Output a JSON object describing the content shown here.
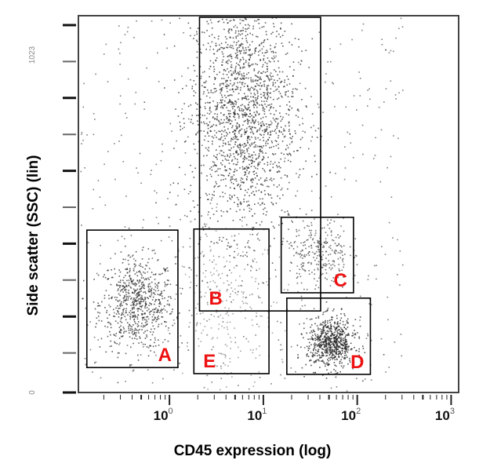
{
  "chart_data": {
    "type": "scatter",
    "title": "",
    "xlabel": "CD45 expression (log)",
    "ylabel": "Side scatter (SSC) (lin)",
    "xscale": "log",
    "xlim_log10": [
      -0.97,
      3.08
    ],
    "ylim": [
      0,
      1058
    ],
    "x_ticks": [
      {
        "base": "10",
        "exp": "0",
        "log10": 0
      },
      {
        "base": "10",
        "exp": "1",
        "log10": 1
      },
      {
        "base": "10",
        "exp": "2",
        "log10": 2
      },
      {
        "base": "10",
        "exp": "3",
        "log10": 3
      }
    ],
    "y_tick_labels": [
      {
        "label": "0",
        "value": 0
      },
      {
        "label": "1023",
        "value": 1023
      }
    ],
    "y_tick_count": 11,
    "grid": false,
    "point_color": "#333333",
    "gate_label_color": "#ee1111",
    "gates": [
      {
        "label": "A",
        "x_log10": [
          -0.88,
          0.09
        ],
        "y": [
          70,
          456
        ]
      },
      {
        "label": "B",
        "x_log10": [
          0.32,
          1.61
        ],
        "y": [
          229,
          1054
        ]
      },
      {
        "label": "C",
        "x_log10": [
          1.19,
          1.96
        ],
        "y": [
          280,
          492
        ]
      },
      {
        "label": "D",
        "x_log10": [
          1.25,
          2.14
        ],
        "y": [
          51,
          265
        ]
      },
      {
        "label": "E",
        "x_log10": [
          0.26,
          1.06
        ],
        "y": [
          53,
          459
        ]
      }
    ],
    "populations": [
      {
        "gate": "A",
        "center_x_log10": -0.35,
        "center_y": 250,
        "sd_x_log10": 0.2,
        "sd_y": 65,
        "n": 700,
        "shade": "#2a2a2a"
      },
      {
        "gate": "B",
        "center_x_log10": 0.78,
        "center_y": 790,
        "sd_x_log10": 0.28,
        "sd_y": 170,
        "n": 1800,
        "shade": "#2a2a2a"
      },
      {
        "gate": "C",
        "center_x_log10": 1.58,
        "center_y": 390,
        "sd_x_log10": 0.16,
        "sd_y": 50,
        "n": 260,
        "shade": "#444444"
      },
      {
        "gate": "D",
        "center_x_log10": 1.72,
        "center_y": 140,
        "sd_x_log10": 0.13,
        "sd_y": 35,
        "n": 700,
        "shade": "#1e1e1e"
      },
      {
        "gate": "E",
        "center_x_log10": 0.62,
        "center_y": 250,
        "sd_x_log10": 0.25,
        "sd_y": 110,
        "n": 260,
        "shade": "#888888"
      },
      {
        "gate": "",
        "center_x_log10": 1.0,
        "center_y": 500,
        "sd_x_log10": 2.0,
        "sd_y": 500,
        "n": 500,
        "shade": "#555555",
        "uniform": true
      }
    ]
  }
}
